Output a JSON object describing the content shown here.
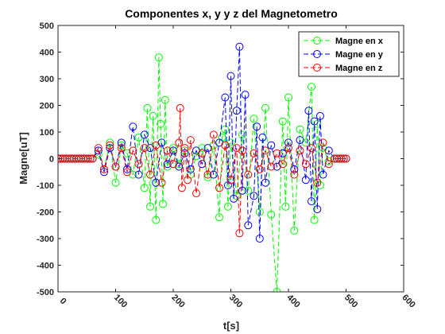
{
  "chart_data": {
    "type": "line",
    "title": "Componentes x, y y z del Magnetometro",
    "xlabel": "t[s]",
    "ylabel": "Magne[uT]",
    "xlim": [
      0,
      600
    ],
    "ylim": [
      -500,
      500
    ],
    "xticks": [
      "0",
      "100",
      "200",
      "300",
      "400",
      "500",
      "600"
    ],
    "yticks": [
      "500",
      "400",
      "300",
      "200",
      "100",
      "0",
      "-100",
      "-200",
      "-300",
      "-400",
      "-500"
    ],
    "grid": false,
    "legend_position": "top-right",
    "series": [
      {
        "name": "Magne en x",
        "color": "#00ff00",
        "line_style": "dash",
        "marker": "circle",
        "x": [
          0,
          60,
          70,
          80,
          90,
          100,
          110,
          120,
          130,
          140,
          150,
          155,
          160,
          165,
          170,
          175,
          178,
          182,
          186,
          190,
          200,
          210,
          220,
          230,
          240,
          250,
          260,
          270,
          280,
          285,
          290,
          295,
          300,
          310,
          320,
          330,
          340,
          350,
          360,
          370,
          380,
          390,
          395,
          400,
          410,
          420,
          430,
          440,
          445,
          450,
          455,
          460,
          470,
          480,
          500
        ],
        "y": [
          0,
          0,
          15,
          -40,
          60,
          -90,
          50,
          20,
          -60,
          80,
          -110,
          190,
          -180,
          160,
          -230,
          380,
          130,
          -170,
          220,
          -30,
          40,
          -20,
          30,
          -60,
          10,
          40,
          -70,
          50,
          -220,
          80,
          110,
          -180,
          60,
          -140,
          90,
          -120,
          150,
          -200,
          190,
          -210,
          -500,
          140,
          -180,
          230,
          -270,
          110,
          60,
          270,
          -230,
          130,
          -100,
          40,
          -10,
          0,
          0
        ]
      },
      {
        "name": "Magne en y",
        "color": "#0000ff",
        "line_style": "dash",
        "marker": "circle",
        "x": [
          0,
          60,
          70,
          80,
          90,
          100,
          110,
          120,
          130,
          140,
          150,
          160,
          170,
          180,
          190,
          200,
          210,
          220,
          230,
          240,
          250,
          260,
          270,
          280,
          290,
          295,
          300,
          305,
          310,
          315,
          320,
          325,
          330,
          340,
          345,
          350,
          355,
          360,
          370,
          380,
          390,
          400,
          410,
          420,
          430,
          435,
          440,
          445,
          450,
          455,
          460,
          470,
          480,
          500
        ],
        "y": [
          0,
          0,
          30,
          -50,
          40,
          -30,
          60,
          -40,
          120,
          -60,
          90,
          40,
          -90,
          60,
          -20,
          30,
          -30,
          20,
          -40,
          30,
          -20,
          40,
          -60,
          60,
          230,
          -100,
          310,
          -150,
          180,
          420,
          -120,
          240,
          -250,
          -140,
          120,
          -300,
          80,
          -90,
          50,
          -30,
          20,
          60,
          -40,
          70,
          -80,
          180,
          -160,
          140,
          -190,
          160,
          -60,
          30,
          0,
          0
        ]
      },
      {
        "name": "Magne en z",
        "color": "#ff0000",
        "line_style": "dash",
        "marker": "circle",
        "x": [
          0,
          60,
          70,
          80,
          90,
          100,
          110,
          120,
          130,
          140,
          150,
          160,
          170,
          180,
          190,
          200,
          210,
          212,
          215,
          220,
          225,
          230,
          240,
          250,
          260,
          270,
          280,
          290,
          300,
          310,
          315,
          320,
          330,
          340,
          350,
          360,
          370,
          380,
          390,
          400,
          410,
          420,
          430,
          440,
          450,
          460,
          470,
          480,
          500
        ],
        "y": [
          0,
          0,
          40,
          -40,
          50,
          -30,
          40,
          -50,
          30,
          -20,
          40,
          -60,
          50,
          -90,
          30,
          -20,
          60,
          190,
          -110,
          40,
          -80,
          70,
          -130,
          20,
          -60,
          90,
          -110,
          50,
          -80,
          40,
          -280,
          30,
          -60,
          20,
          -40,
          30,
          -30,
          20,
          -20,
          40,
          -60,
          30,
          -20,
          40,
          -90,
          60,
          -20,
          0,
          0
        ]
      }
    ]
  }
}
